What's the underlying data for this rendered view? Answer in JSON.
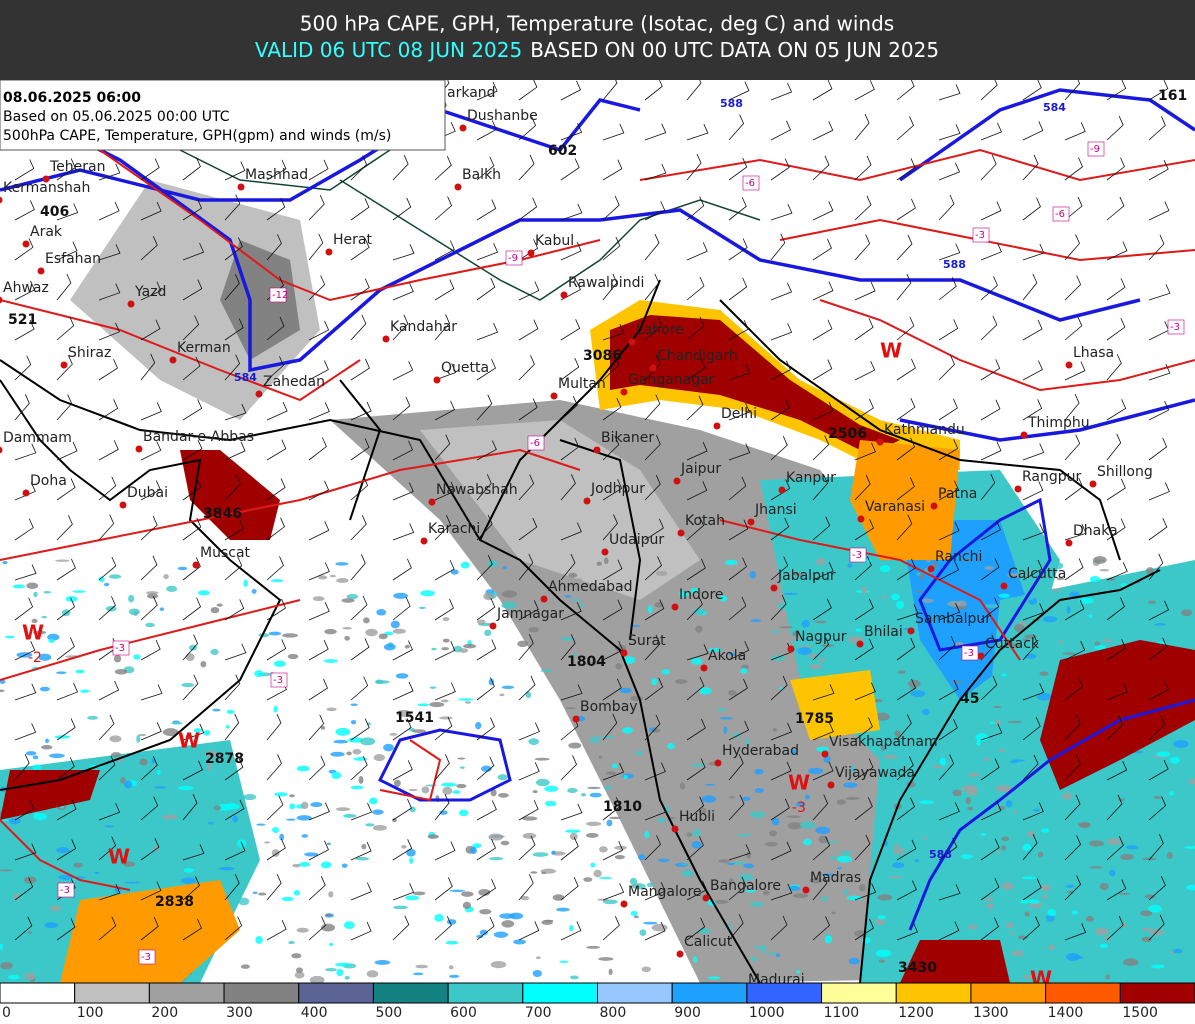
{
  "header": {
    "title": "500 hPa CAPE, GPH, Temperature (Isotac, deg C) and winds",
    "valid": "VALID 06 UTC 08 JUN 2025",
    "based": "BASED ON 00 UTC DATA ON 05 JUN 2025"
  },
  "info": {
    "lines": [
      "08.06.2025 06:00",
      "Based on 05.06.2025 00:00 UTC",
      "500hPa CAPE, Temperature, GPH(gpm) and winds (m/s)"
    ]
  },
  "cities": [
    "arkand",
    "Dushanbe",
    "Balkh",
    "Teheran",
    "Kermanshah",
    "Mashhad",
    "Arak",
    "Esfahan",
    "Herat",
    "Kabul",
    "Ahwaz",
    "Yazd",
    "Rawalpindi",
    "Kandahar",
    "Shiraz",
    "Kerman",
    "Lahore",
    "Chandigarh",
    "Zahedan",
    "Quetta",
    "Multan",
    "Ganganagar",
    "Delhi",
    "Lhasa",
    "Dammam",
    "Bandar-e-Abbas",
    "Bikaner",
    "Kathmandu",
    "Thimphu",
    "Doha",
    "Dubai",
    "Nawabshah",
    "Jodhpur",
    "Jaipur",
    "Kanpur",
    "Patna",
    "Rangpur",
    "Shillong",
    "Varanasi",
    "Jhansi",
    "Kotah",
    "Muscat",
    "Karachi",
    "Udaipur",
    "Dhaka",
    "Ranchi",
    "Calcutta",
    "Jabalpur",
    "Ahmedabad",
    "Indore",
    "Jamnagar",
    "Surat",
    "Sambalpur",
    "Nagpur",
    "Bhilai",
    "Cuttack",
    "Akola",
    "Bombay",
    "Hyderabad",
    "Visakhapatnam",
    "Vijayawada",
    "Hubli",
    "Madras",
    "Bangalore",
    "Mangalore",
    "Calicut",
    "Madurai"
  ],
  "map_labels": [
    {
      "text": "406",
      "kind": "cape"
    },
    {
      "text": "521",
      "kind": "cape"
    },
    {
      "text": "602",
      "kind": "cape"
    },
    {
      "text": "3086",
      "kind": "cape"
    },
    {
      "text": "2506",
      "kind": "cape"
    },
    {
      "text": "3846",
      "kind": "cape"
    },
    {
      "text": "1804",
      "kind": "cape"
    },
    {
      "text": "1541",
      "kind": "cape"
    },
    {
      "text": "2878",
      "kind": "cape"
    },
    {
      "text": "1785",
      "kind": "cape"
    },
    {
      "text": "1810",
      "kind": "cape"
    },
    {
      "text": "2838",
      "kind": "cape"
    },
    {
      "text": "3430",
      "kind": "cape"
    },
    {
      "text": "45",
      "kind": "cape"
    },
    {
      "text": "161",
      "kind": "cape"
    },
    {
      "text": "W",
      "kind": "warm"
    },
    {
      "text": "W",
      "kind": "warm"
    },
    {
      "text": "W",
      "kind": "warm"
    },
    {
      "text": "W",
      "kind": "warm"
    },
    {
      "text": "W",
      "kind": "warm"
    },
    {
      "text": "W",
      "kind": "warm"
    },
    {
      "text": "-2",
      "kind": "redb"
    },
    {
      "text": "-3",
      "kind": "redb"
    },
    {
      "text": "-12",
      "kind": "temp"
    },
    {
      "text": "-6",
      "kind": "temp"
    },
    {
      "text": "-3",
      "kind": "temp"
    },
    {
      "text": "-3",
      "kind": "temp"
    },
    {
      "text": "-3",
      "kind": "temp"
    },
    {
      "text": "-3",
      "kind": "temp"
    },
    {
      "text": "-9",
      "kind": "temp"
    },
    {
      "text": "-6",
      "kind": "temp"
    },
    {
      "text": "-3",
      "kind": "temp"
    },
    {
      "text": "-6",
      "kind": "temp"
    },
    {
      "text": "-9",
      "kind": "temp"
    },
    {
      "text": "-3",
      "kind": "temp"
    },
    {
      "text": "-3",
      "kind": "temp"
    },
    {
      "text": "-3",
      "kind": "temp"
    },
    {
      "text": "588",
      "kind": "gph"
    },
    {
      "text": "584",
      "kind": "gph"
    },
    {
      "text": "588",
      "kind": "gph"
    },
    {
      "text": "588",
      "kind": "gph"
    },
    {
      "text": "584",
      "kind": "gph"
    }
  ],
  "colorbar": {
    "ticks": [
      0,
      100,
      200,
      300,
      400,
      500,
      600,
      700,
      800,
      900,
      1000,
      1100,
      1200,
      1300,
      1400,
      1500
    ],
    "colors": [
      "#ffffff",
      "#c0c0c0",
      "#a0a0a0",
      "#828282",
      "#5c6496",
      "#148282",
      "#3cc8c8",
      "#00ffff",
      "#96c8ff",
      "#1ea0ff",
      "#3264ff",
      "#ffff99",
      "#ffc400",
      "#ff9a00",
      "#ff5a00",
      "#a00000"
    ]
  }
}
